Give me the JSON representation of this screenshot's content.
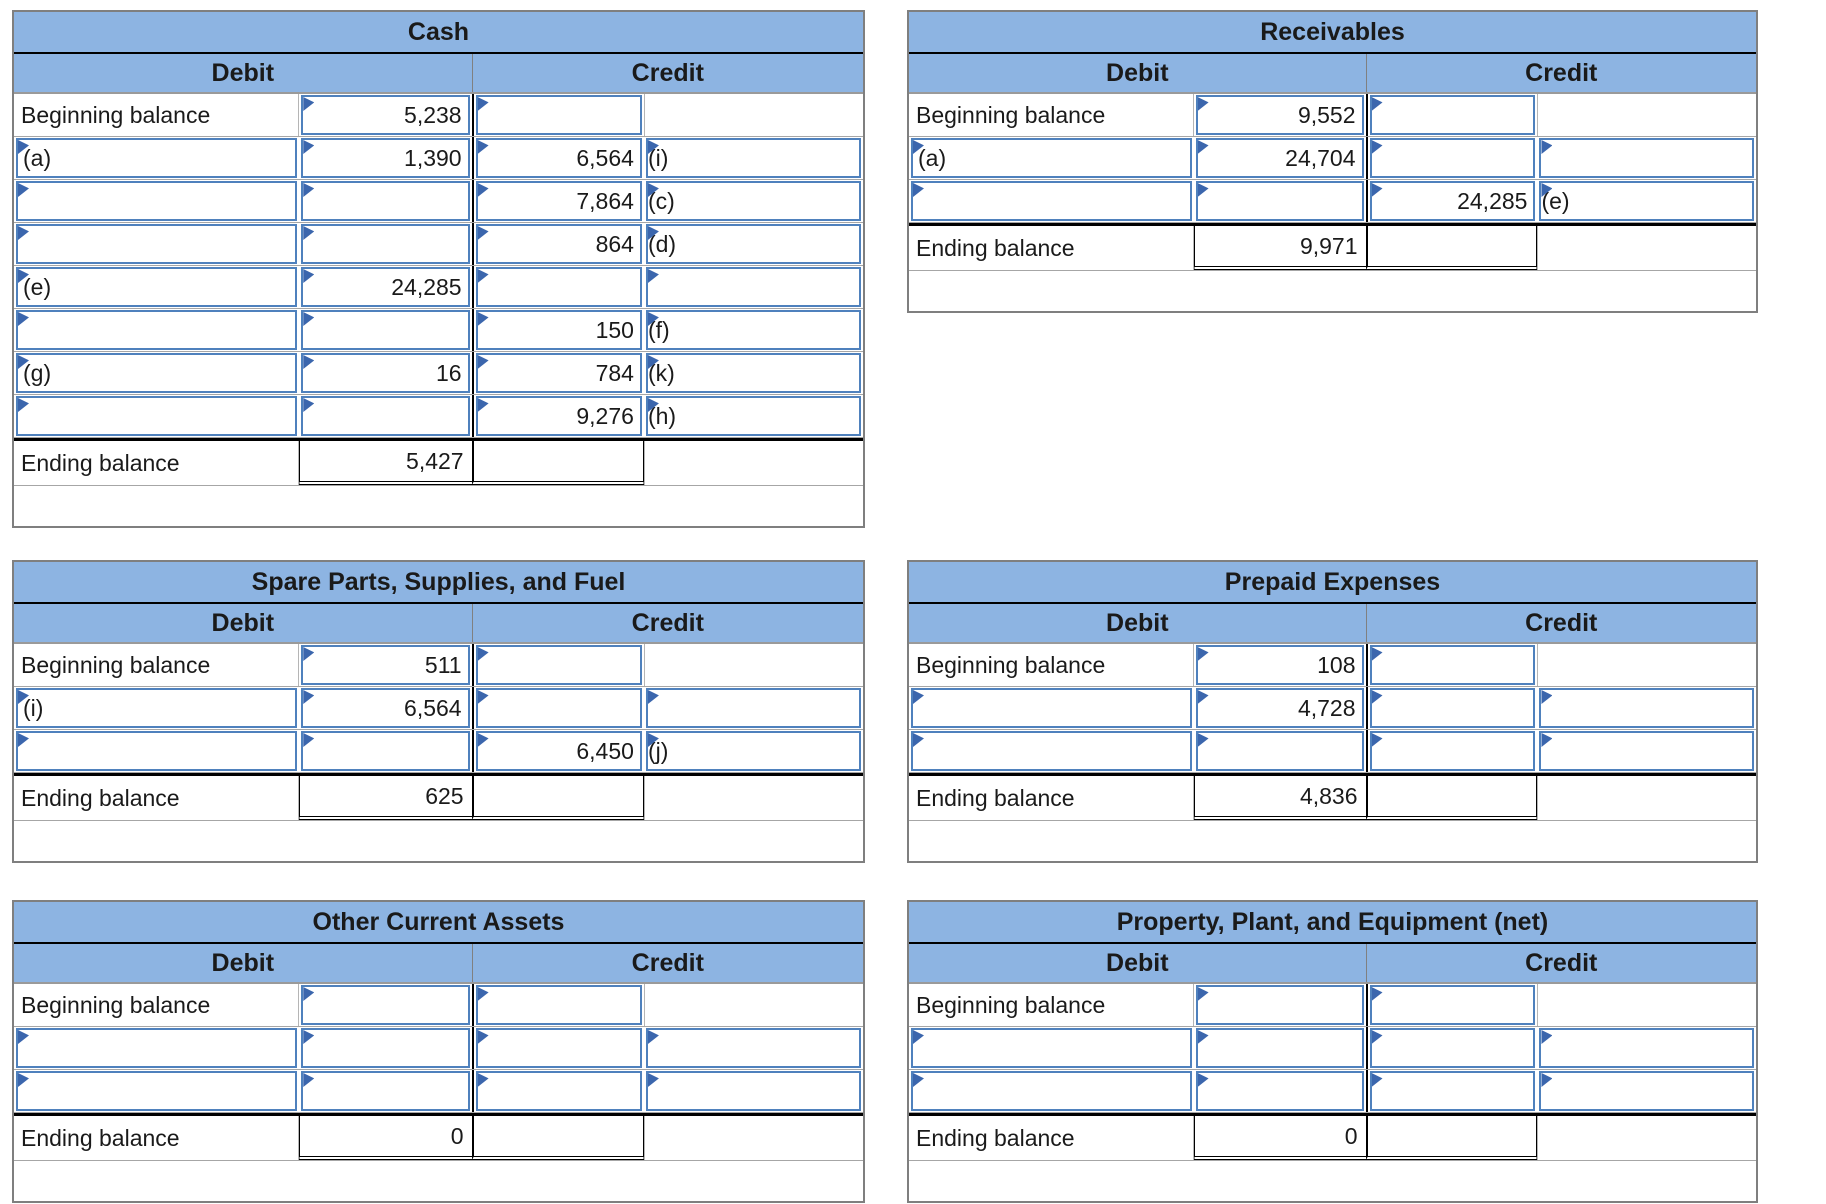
{
  "colors": {
    "header_fill": "#8db4e2",
    "input_border": "#4f81bd",
    "flag_marker": "#3b66ad",
    "grid_line": "#9a9a9a",
    "strong_line": "#000000"
  },
  "columns": [
    {
      "tables": [
        {
          "title": "Cash",
          "debit_header": "Debit",
          "credit_header": "Credit",
          "rows": [
            {
              "type": "begin",
              "label": "Beginning balance",
              "debit": "5,238",
              "credit": "",
              "credit_label": ""
            },
            {
              "type": "input",
              "label": "(a)",
              "debit": "1,390",
              "credit": "6,564",
              "credit_label": "(i)"
            },
            {
              "type": "input",
              "label": "",
              "debit": "",
              "credit": "7,864",
              "credit_label": "(c)"
            },
            {
              "type": "input",
              "label": "",
              "debit": "",
              "credit": "864",
              "credit_label": "(d)"
            },
            {
              "type": "input",
              "label": "(e)",
              "debit": "24,285",
              "credit": "",
              "credit_label": ""
            },
            {
              "type": "input",
              "label": "",
              "debit": "",
              "credit": "150",
              "credit_label": "(f)"
            },
            {
              "type": "input",
              "label": "(g)",
              "debit": "16",
              "credit": "784",
              "credit_label": "(k)"
            },
            {
              "type": "input",
              "label": "",
              "debit": "",
              "credit": "9,276",
              "credit_label": "(h)"
            },
            {
              "type": "end",
              "label": "Ending balance",
              "debit": "5,427",
              "credit": "",
              "credit_label": ""
            }
          ]
        },
        {
          "title": "Spare Parts, Supplies, and Fuel",
          "debit_header": "Debit",
          "credit_header": "Credit",
          "rows": [
            {
              "type": "begin",
              "label": "Beginning balance",
              "debit": "511",
              "credit": "",
              "credit_label": ""
            },
            {
              "type": "input",
              "label": "(i)",
              "debit": "6,564",
              "credit": "",
              "credit_label": ""
            },
            {
              "type": "input",
              "label": "",
              "debit": "",
              "credit": "6,450",
              "credit_label": "(j)"
            },
            {
              "type": "end",
              "label": "Ending balance",
              "debit": "625",
              "credit": "",
              "credit_label": ""
            }
          ]
        },
        {
          "title": "Other Current Assets",
          "debit_header": "Debit",
          "credit_header": "Credit",
          "rows": [
            {
              "type": "begin",
              "label": "Beginning balance",
              "debit": "",
              "credit": "",
              "credit_label": ""
            },
            {
              "type": "input",
              "label": "",
              "debit": "",
              "credit": "",
              "credit_label": ""
            },
            {
              "type": "input",
              "label": "",
              "debit": "",
              "credit": "",
              "credit_label": ""
            },
            {
              "type": "end",
              "label": "Ending balance",
              "debit": "0",
              "credit": "",
              "credit_label": ""
            }
          ]
        }
      ]
    },
    {
      "tables": [
        {
          "title": "Receivables",
          "debit_header": "Debit",
          "credit_header": "Credit",
          "rows": [
            {
              "type": "begin",
              "label": "Beginning balance",
              "debit": "9,552",
              "credit": "",
              "credit_label": ""
            },
            {
              "type": "input",
              "label": "(a)",
              "debit": "24,704",
              "credit": "",
              "credit_label": ""
            },
            {
              "type": "input",
              "label": "",
              "debit": "",
              "credit": "24,285",
              "credit_label": "(e)"
            },
            {
              "type": "end",
              "label": "Ending balance",
              "debit": "9,971",
              "credit": "",
              "credit_label": ""
            }
          ]
        },
        {
          "title": "Prepaid Expenses",
          "debit_header": "Debit",
          "credit_header": "Credit",
          "rows": [
            {
              "type": "begin",
              "label": "Beginning balance",
              "debit": "108",
              "credit": "",
              "credit_label": ""
            },
            {
              "type": "input",
              "label": "",
              "debit": "4,728",
              "credit": "",
              "credit_label": ""
            },
            {
              "type": "input",
              "label": "",
              "debit": "",
              "credit": "",
              "credit_label": ""
            },
            {
              "type": "end",
              "label": "Ending balance",
              "debit": "4,836",
              "credit": "",
              "credit_label": ""
            }
          ]
        },
        {
          "title": "Property, Plant, and Equipment (net)",
          "debit_header": "Debit",
          "credit_header": "Credit",
          "rows": [
            {
              "type": "begin",
              "label": "Beginning balance",
              "debit": "",
              "credit": "",
              "credit_label": ""
            },
            {
              "type": "input",
              "label": "",
              "debit": "",
              "credit": "",
              "credit_label": ""
            },
            {
              "type": "input",
              "label": "",
              "debit": "",
              "credit": "",
              "credit_label": ""
            },
            {
              "type": "end",
              "label": "Ending balance",
              "debit": "0",
              "credit": "",
              "credit_label": ""
            }
          ]
        }
      ]
    }
  ]
}
